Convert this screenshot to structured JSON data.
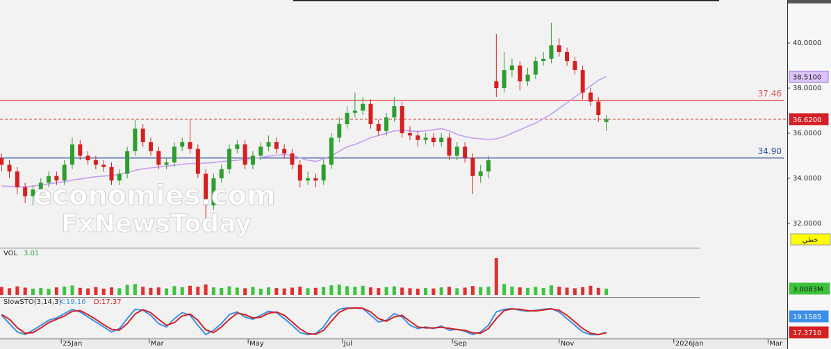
{
  "chart_data": [
    {
      "type": "candlestick",
      "open": [
        34.9,
        34.6,
        34.3,
        33.6,
        33.2,
        33.5,
        33.8,
        34.1,
        33.9,
        34.6,
        35.5,
        35.0,
        34.8,
        34.6,
        34.5,
        33.9,
        34.2,
        35.2,
        36.2,
        35.6,
        35.2,
        34.6,
        34.7,
        35.4,
        35.6,
        35.3,
        34.2,
        32.8,
        34.0,
        34.4,
        35.3,
        35.5,
        34.6,
        35.0,
        35.4,
        35.6,
        35.3,
        35.1,
        34.6,
        33.9,
        34.0,
        33.9,
        34.6,
        35.8,
        36.4,
        36.9,
        37.0,
        37.3,
        36.4,
        36.1,
        36.7,
        37.2,
        36.0,
        35.9,
        35.7,
        35.8,
        35.6,
        35.8,
        35.0,
        35.4,
        34.9,
        34.1,
        34.3,
        38.3,
        38.0,
        38.8,
        39.0,
        38.3,
        38.6,
        39.2,
        39.3,
        39.9,
        39.6,
        39.2,
        38.8,
        37.8,
        37.4,
        36.5
      ],
      "high": [
        35.1,
        34.8,
        34.5,
        33.8,
        33.7,
        34.0,
        34.3,
        34.3,
        34.8,
        35.8,
        35.7,
        35.2,
        35.0,
        34.8,
        34.7,
        34.4,
        35.4,
        36.6,
        36.4,
        35.8,
        35.4,
        34.9,
        35.6,
        35.8,
        36.6,
        35.5,
        34.4,
        34.2,
        34.6,
        35.5,
        35.7,
        35.7,
        35.2,
        35.6,
        35.9,
        35.8,
        35.5,
        35.3,
        34.8,
        34.3,
        34.2,
        34.8,
        36.0,
        36.7,
        37.2,
        37.8,
        37.6,
        37.5,
        36.6,
        36.9,
        37.6,
        37.4,
        36.3,
        36.1,
        36.0,
        36.0,
        36.0,
        36.0,
        35.6,
        35.6,
        35.1,
        34.6,
        35.0,
        40.4,
        39.6,
        39.3,
        39.2,
        38.9,
        39.4,
        39.6,
        40.9,
        40.2,
        39.8,
        39.4,
        39.0,
        38.0,
        37.6,
        36.8
      ],
      "low": [
        34.3,
        34.0,
        33.3,
        32.9,
        32.8,
        33.3,
        33.6,
        33.7,
        33.7,
        34.4,
        34.8,
        34.6,
        34.4,
        34.3,
        33.7,
        33.7,
        34.0,
        35.0,
        35.4,
        35.0,
        34.4,
        34.4,
        34.5,
        35.2,
        35.1,
        34.0,
        31.6,
        32.6,
        33.8,
        34.2,
        35.1,
        34.4,
        34.4,
        34.8,
        35.2,
        35.1,
        34.9,
        34.4,
        33.6,
        33.7,
        33.6,
        33.7,
        34.4,
        35.6,
        36.2,
        36.7,
        36.8,
        36.2,
        35.9,
        35.9,
        36.5,
        35.8,
        35.7,
        35.4,
        35.5,
        35.4,
        35.4,
        34.8,
        34.8,
        34.7,
        33.3,
        33.8,
        34.0,
        37.6,
        37.8,
        38.5,
        37.9,
        38.1,
        38.4,
        39.0,
        39.1,
        39.4,
        39.0,
        38.6,
        37.5,
        37.2,
        36.5,
        36.1
      ],
      "close": [
        34.6,
        34.3,
        33.6,
        33.2,
        33.5,
        33.8,
        34.1,
        33.9,
        34.6,
        35.5,
        35.0,
        34.8,
        34.6,
        34.5,
        33.9,
        34.2,
        35.2,
        36.2,
        35.6,
        35.2,
        34.6,
        34.7,
        35.4,
        35.6,
        35.3,
        34.2,
        32.8,
        34.0,
        34.4,
        35.3,
        35.5,
        34.6,
        35.0,
        35.4,
        35.6,
        35.3,
        35.1,
        34.6,
        33.9,
        34.0,
        33.9,
        34.6,
        35.8,
        36.4,
        36.9,
        37.0,
        37.3,
        36.4,
        36.1,
        36.7,
        37.2,
        36.0,
        35.9,
        35.7,
        35.8,
        35.6,
        35.8,
        35.0,
        35.4,
        34.9,
        34.1,
        34.3,
        34.8,
        38.0,
        38.8,
        39.0,
        38.3,
        38.6,
        39.2,
        39.3,
        39.9,
        39.6,
        39.2,
        38.8,
        37.8,
        37.4,
        36.8,
        36.62
      ],
      "up_color": "#2e9e2e",
      "down_color": "#d42020",
      "overlays": [
        {
          "color": "#c79cf2",
          "last_label": "38.5100",
          "values": [
            33.66,
            33.64,
            33.62,
            33.62,
            33.65,
            33.7,
            33.75,
            33.8,
            33.85,
            33.92,
            33.97,
            34.02,
            34.07,
            34.1,
            34.12,
            34.18,
            34.25,
            34.35,
            34.42,
            34.46,
            34.5,
            34.54,
            34.58,
            34.62,
            34.65,
            34.66,
            34.68,
            34.7,
            34.74,
            34.77,
            34.8,
            34.84,
            34.88,
            34.92,
            34.98,
            35.03,
            35.05,
            35.02,
            34.9,
            34.8,
            34.75,
            34.85,
            35.0,
            35.2,
            35.4,
            35.5,
            35.65,
            35.8,
            35.9,
            36.0,
            36.1,
            36.12,
            36.1,
            36.08,
            36.1,
            36.15,
            36.2,
            36.1,
            35.95,
            35.85,
            35.78,
            35.75,
            35.72,
            35.75,
            35.85,
            36.0,
            36.15,
            36.3,
            36.45,
            36.65,
            36.85,
            37.1,
            37.35,
            37.6,
            37.85,
            38.1,
            38.35,
            38.51
          ]
        }
      ],
      "hlines": [
        {
          "value": 37.46,
          "label": "37.46",
          "color": "#e05a5a"
        },
        {
          "value": 34.9,
          "label": "34.90",
          "color": "#2b4c9b"
        }
      ],
      "last_price": {
        "value": 36.62,
        "label": "36.6200"
      },
      "ylim": [
        30.92,
        41.91
      ],
      "yticks": [
        {
          "value": 32,
          "label": "32.0000"
        },
        {
          "value": 34,
          "label": "34.0000"
        },
        {
          "value": 36,
          "label": "36.0000"
        },
        {
          "value": 38,
          "label": "38.0000"
        },
        {
          "value": 40,
          "label": "40.0000"
        }
      ],
      "xlim": [
        -0.2,
        99.6
      ],
      "scale_mode": "خطي",
      "watermark": [
        "economies.com",
        "FxNewsToday"
      ]
    },
    {
      "type": "bar",
      "title": "VOL",
      "legend_value": 3.01,
      "values": [
        3.8,
        3.2,
        4.1,
        3.5,
        3.0,
        3.3,
        2.9,
        3.6,
        4.0,
        4.5,
        3.4,
        3.1,
        3.8,
        3.0,
        3.6,
        3.2,
        4.8,
        5.2,
        3.9,
        3.4,
        3.6,
        3.1,
        4.2,
        3.7,
        4.4,
        3.9,
        5.0,
        3.6,
        3.3,
        4.1,
        3.5,
        3.2,
        3.8,
        3.0,
        3.6,
        3.3,
        3.1,
        3.5,
        3.9,
        3.2,
        3.4,
        3.8,
        4.6,
        4.9,
        4.2,
        3.9,
        4.4,
        3.6,
        3.3,
        3.7,
        4.1,
        3.5,
        3.2,
        3.0,
        3.3,
        3.1,
        3.6,
        3.9,
        3.2,
        3.5,
        4.3,
        3.7,
        3.9,
        17.7,
        5.2,
        4.0,
        3.6,
        3.4,
        3.8,
        3.3,
        4.6,
        3.9,
        3.5,
        3.2,
        3.7,
        4.4,
        3.4,
        3.0083
      ],
      "last_label": "3.0083M",
      "color": "#3cc43c",
      "ylim": [
        0,
        21
      ],
      "xlim": [
        -0.2,
        99.6
      ]
    },
    {
      "type": "line",
      "title": "SlowSTO(3,14,3)",
      "series": [
        {
          "name": "K:19.16",
          "color": "#3b8fe6",
          "last_label": "19.1585",
          "values": [
            70,
            45,
            20,
            12,
            25,
            40,
            55,
            62,
            75,
            88,
            80,
            65,
            50,
            35,
            20,
            30,
            60,
            88,
            85,
            70,
            45,
            35,
            60,
            78,
            70,
            40,
            12,
            25,
            45,
            72,
            80,
            65,
            58,
            70,
            82,
            78,
            60,
            40,
            18,
            12,
            15,
            35,
            70,
            88,
            92,
            92,
            90,
            70,
            50,
            55,
            75,
            65,
            40,
            30,
            35,
            30,
            38,
            25,
            28,
            22,
            12,
            20,
            40,
            80,
            88,
            90,
            85,
            82,
            85,
            88,
            90,
            80,
            60,
            40,
            20,
            12,
            12,
            19.1585
          ]
        },
        {
          "name": "D:17.37",
          "color": "#d42020",
          "last_label": "17.3710",
          "values": [
            72,
            58,
            33,
            16,
            18,
            32,
            48,
            58,
            68,
            82,
            84,
            72,
            58,
            42,
            28,
            25,
            45,
            74,
            87,
            78,
            58,
            40,
            48,
            68,
            74,
            55,
            26,
            18,
            35,
            58,
            76,
            72,
            62,
            64,
            76,
            80,
            70,
            50,
            29,
            15,
            13,
            25,
            52,
            79,
            90,
            92,
            91,
            80,
            60,
            52,
            65,
            70,
            52,
            35,
            32,
            32,
            34,
            31,
            27,
            25,
            17,
            16,
            30,
            60,
            84,
            89,
            88,
            84,
            83,
            86,
            89,
            85,
            70,
            50,
            30,
            16,
            12,
            17.371
          ]
        }
      ],
      "ylim": [
        0,
        100
      ],
      "xlim": [
        -0.2,
        99.6
      ],
      "xticks": [
        {
          "value": 7.6,
          "label": "25Jan"
        },
        {
          "value": 18.8,
          "label": "Mar"
        },
        {
          "value": 31.4,
          "label": "May"
        },
        {
          "value": 43.4,
          "label": "Jul"
        },
        {
          "value": 57.4,
          "label": "Sep"
        },
        {
          "value": 71.0,
          "label": "Nov"
        },
        {
          "value": 85.6,
          "label": "2026Jan"
        },
        {
          "value": 97.6,
          "label": "Mar"
        }
      ]
    }
  ]
}
